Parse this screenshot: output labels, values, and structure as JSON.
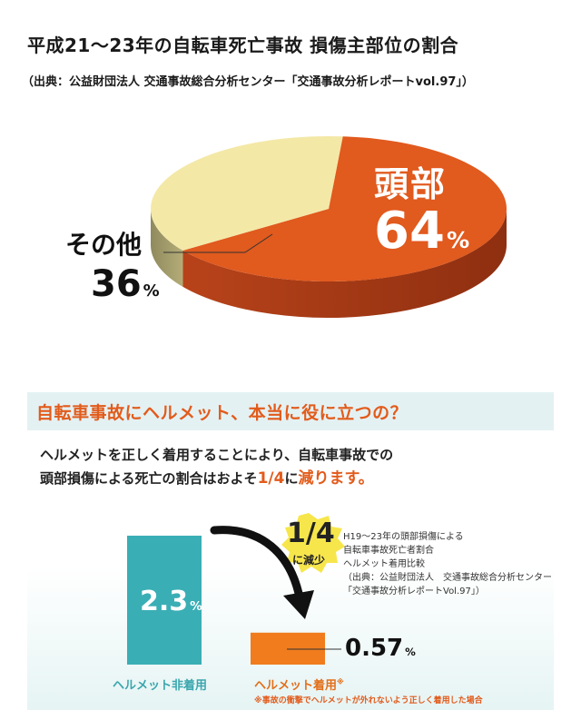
{
  "header": {
    "title": "平成21～23年の自転車死亡事故 損傷主部位の割合",
    "source": "（出典：公益財団法人 交通事故総合分析センター「交通事故分析レポートvol.97」）"
  },
  "chart_data": [
    {
      "type": "pie",
      "title": "平成21～23年の自転車死亡事故 損傷主部位の割合",
      "slices": [
        {
          "label": "頭部",
          "value": 64,
          "color": "#e15a1e",
          "value_text": "64",
          "unit": "%"
        },
        {
          "label": "その他",
          "value": 36,
          "color": "#f4e8a7",
          "value_text": "36",
          "unit": "%"
        }
      ]
    },
    {
      "type": "bar",
      "categories": [
        "ヘルメット非着用",
        "ヘルメット着用"
      ],
      "values": [
        2.3,
        0.57
      ],
      "value_labels": [
        "2.3",
        "0.57"
      ],
      "unit": "%",
      "colors": [
        "#3aaeb5",
        "#f07c1e"
      ],
      "category_note_mark": "※"
    }
  ],
  "panel": {
    "title": "自転車事故にヘルメット、本当に役に立つの？",
    "body_line1": "ヘルメットを正しく着用することにより、自転車事故での",
    "body_line2_a": "頭部損傷による死亡の割合はおよそ",
    "body_line2_emph": "1/4",
    "body_line2_b": "に",
    "body_line2_emph2": "減ります。",
    "badge_top": "1/4",
    "badge_bottom": "に減少",
    "note_lines": [
      "H19～23年の頭部損傷による",
      "自転車事故死亡者割合",
      "ヘルメット着用比較",
      "（出典：公益財団法人　交通事故総合分析センター",
      "「交通事故分析レポートVol.97」）"
    ],
    "footnote": "※事故の衝撃でヘルメットが外れないよう正しく着用した場合"
  }
}
